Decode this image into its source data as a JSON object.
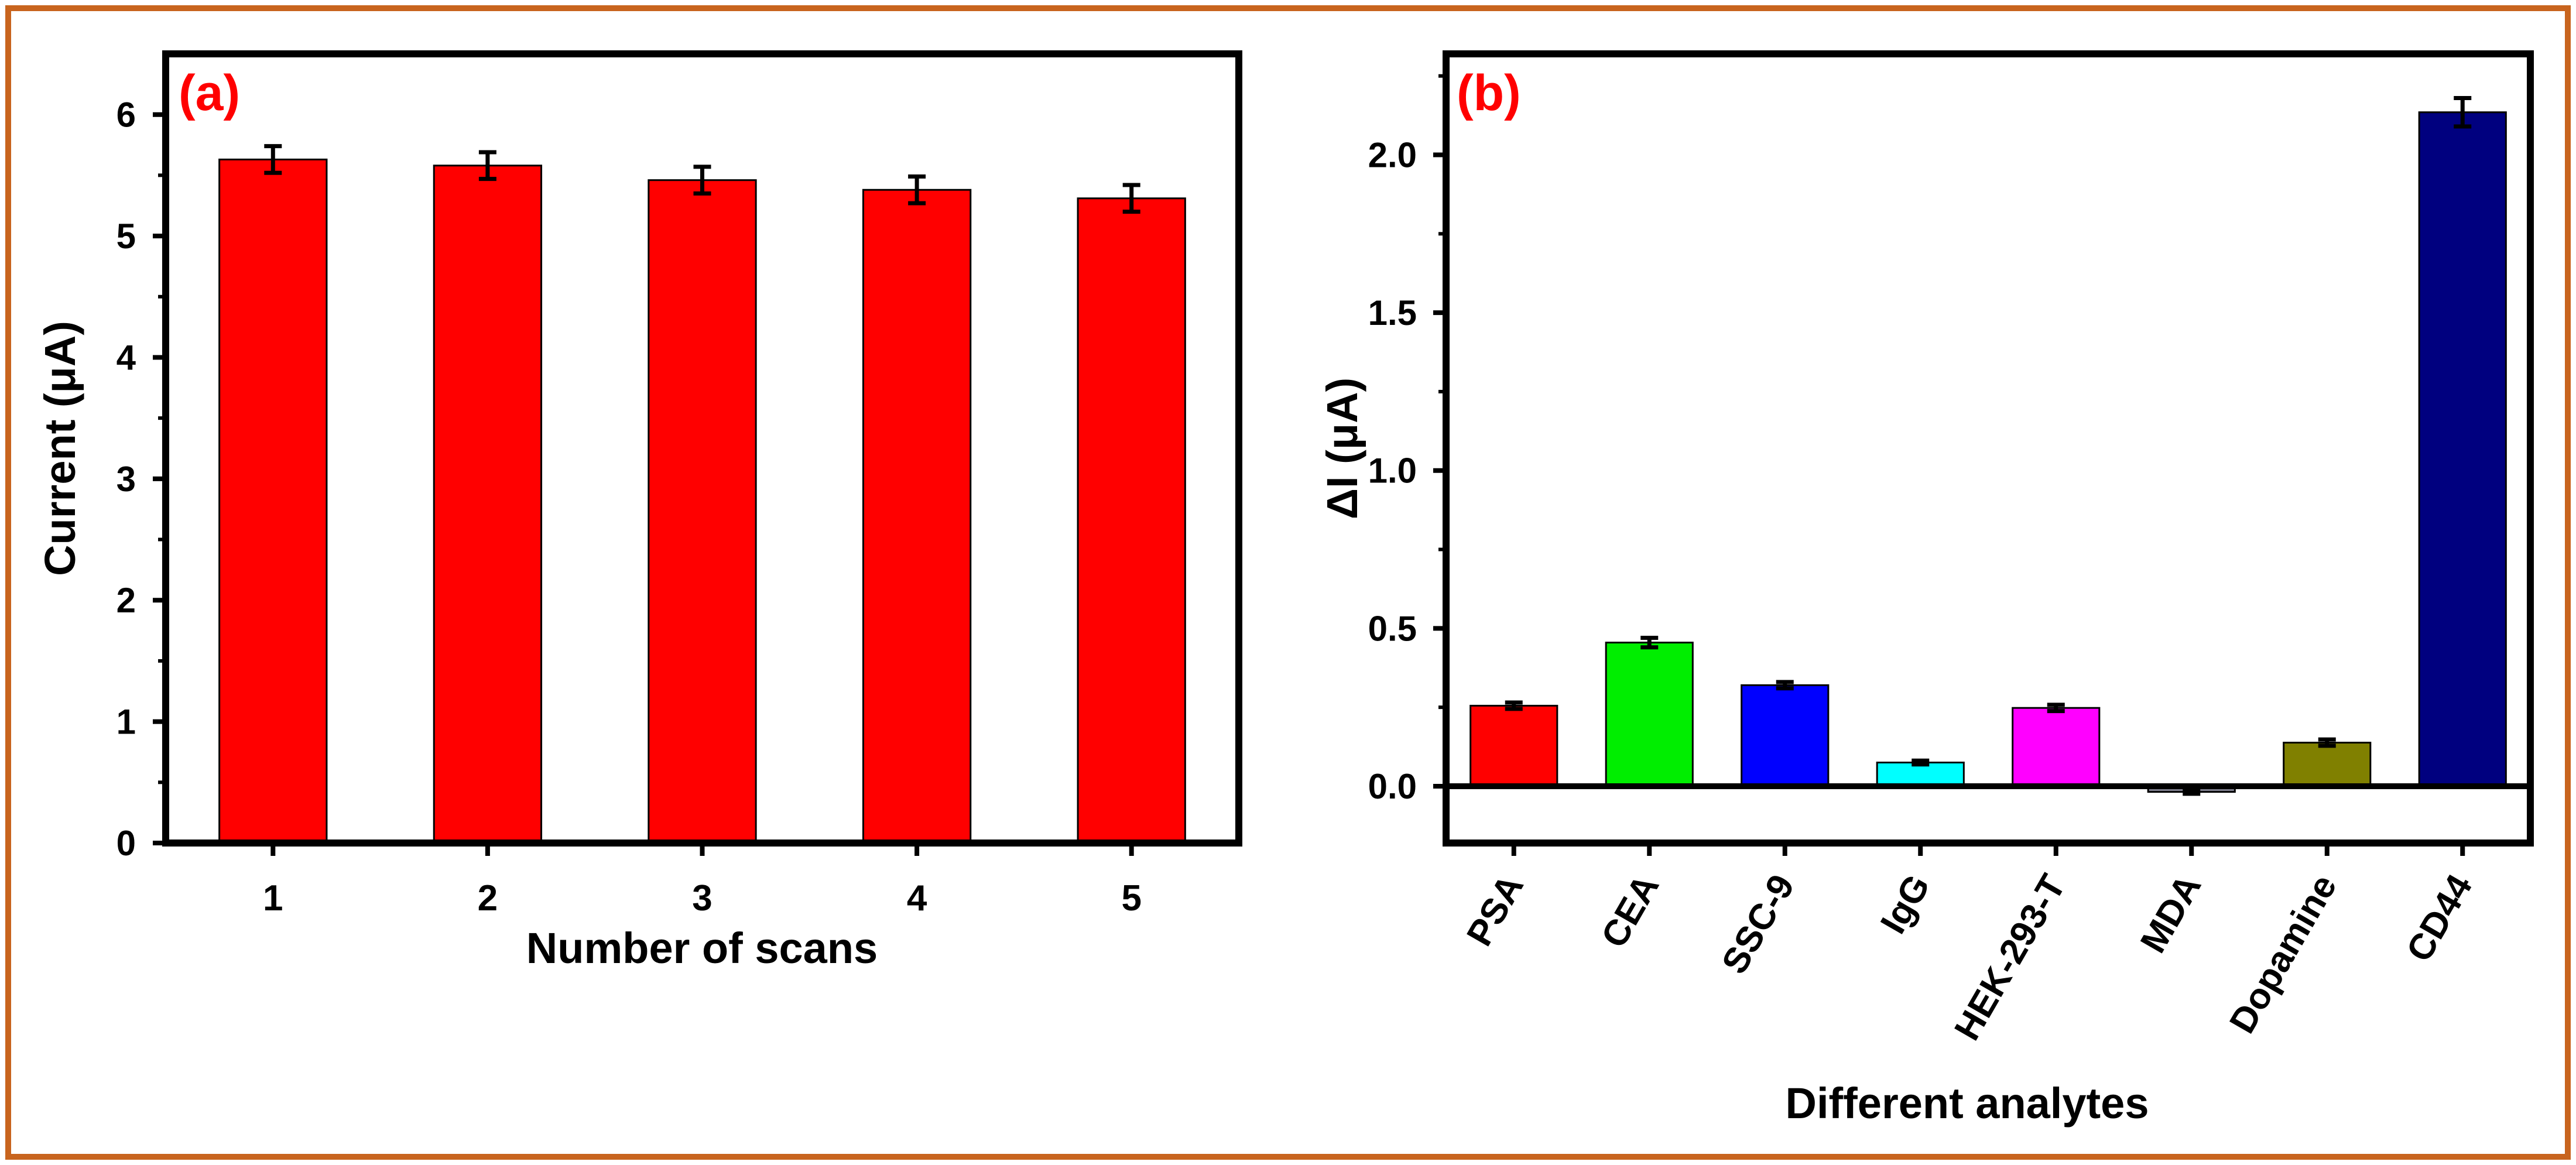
{
  "colors": {
    "frame": "#c8641e",
    "axis": "#000000",
    "panel_label": "#ff0000"
  },
  "chart_data": [
    {
      "id": "a",
      "type": "bar",
      "panel_label": "(a)",
      "title": "",
      "xlabel": "Number of scans",
      "ylabel": "Current (μA)",
      "categories": [
        "1",
        "2",
        "3",
        "4",
        "5"
      ],
      "values": [
        5.63,
        5.58,
        5.46,
        5.38,
        5.31
      ],
      "errors": [
        0.11,
        0.11,
        0.11,
        0.11,
        0.11
      ],
      "bar_colors": [
        "#ff0000",
        "#ff0000",
        "#ff0000",
        "#ff0000",
        "#ff0000"
      ],
      "ylim": [
        0,
        6.5
      ],
      "yticks": [
        0,
        1,
        2,
        3,
        4,
        5,
        6
      ],
      "ytick_labels": [
        "0",
        "1",
        "2",
        "3",
        "4",
        "5",
        "6"
      ],
      "grid": false,
      "x_labels_rotated": false
    },
    {
      "id": "b",
      "type": "bar",
      "panel_label": "(b)",
      "title": "",
      "xlabel": "Different analytes",
      "ylabel": "ΔI (μA)",
      "categories": [
        "PSA",
        "CEA",
        "SSC-9",
        "IgG",
        "HEK-293-T",
        "MDA",
        "Dopamine",
        "CD44"
      ],
      "values": [
        0.255,
        0.455,
        0.32,
        0.075,
        0.248,
        -0.018,
        0.138,
        2.135
      ],
      "errors": [
        0.01,
        0.015,
        0.01,
        0.006,
        0.01,
        0.006,
        0.01,
        0.045
      ],
      "bar_colors": [
        "#ff0000",
        "#00ee00",
        "#0000ff",
        "#00ffff",
        "#ff00ff",
        "#80808f",
        "#808000",
        "#00007f"
      ],
      "ylim": [
        -0.18,
        2.32
      ],
      "yticks": [
        0.0,
        0.5,
        1.0,
        1.5,
        2.0
      ],
      "ytick_labels": [
        "0.0",
        "0.5",
        "1.0",
        "1.5",
        "2.0"
      ],
      "grid": false,
      "x_labels_rotated": true
    }
  ]
}
